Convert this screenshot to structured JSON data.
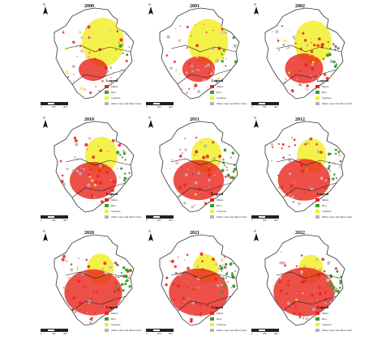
{
  "panels": [
    {
      "year": "2000",
      "level": 0
    },
    {
      "year": "2001",
      "level": 0.1
    },
    {
      "year": "2002",
      "level": 0.25
    },
    {
      "year": "2010",
      "level": 0.5
    },
    {
      "year": "2011",
      "level": 0.6
    },
    {
      "year": "2012",
      "level": 0.65
    },
    {
      "year": "2020",
      "level": 0.8
    },
    {
      "year": "2021",
      "level": 0.85
    },
    {
      "year": "2022",
      "level": 0.9
    }
  ],
  "north_label": "N",
  "legend": {
    "title": "Legend",
    "items": [
      {
        "label": "Maize",
        "color": "#e8231c"
      },
      {
        "label": "Rice",
        "color": "#3a9e2f"
      },
      {
        "label": "Soybean",
        "color": "#f2ee2a"
      },
      {
        "label": "Other crops and fallow land",
        "color": "#b5b5b5"
      }
    ]
  },
  "scale": {
    "ticks": [
      "0",
      "200",
      "400"
    ]
  }
}
